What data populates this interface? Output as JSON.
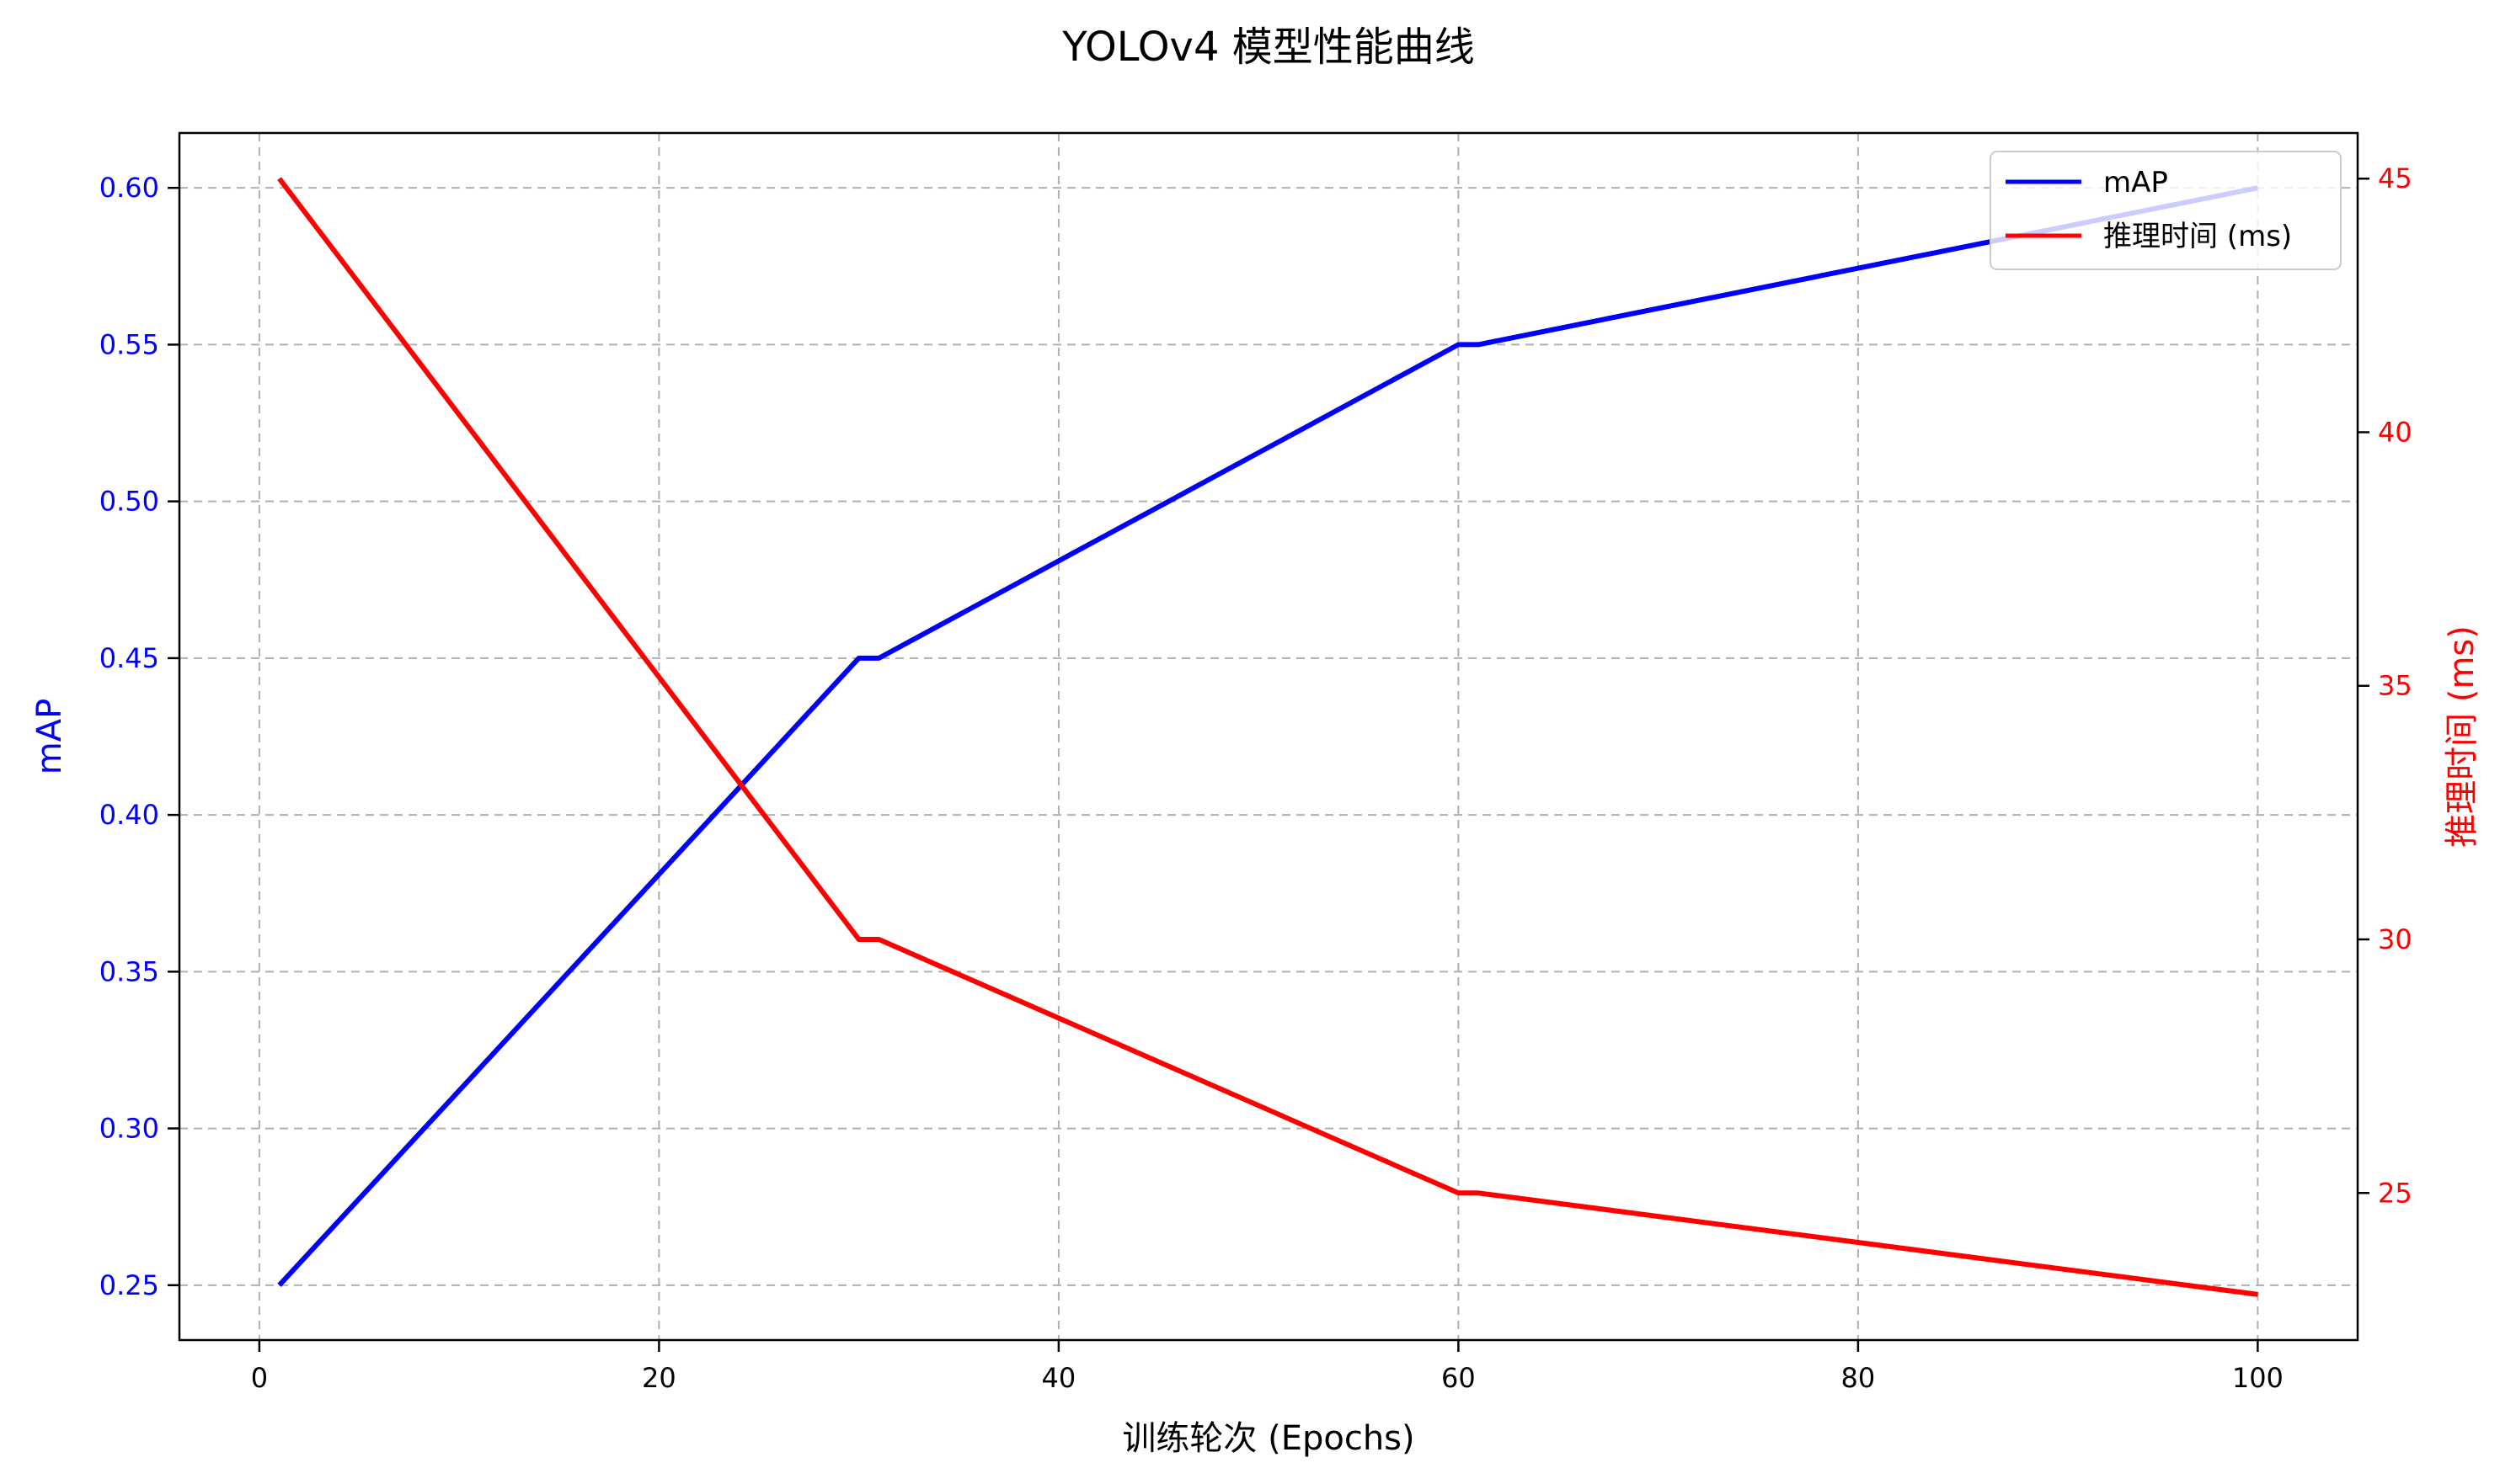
{
  "chart_data": {
    "type": "line",
    "title": "YOLOv4 模型性能曲线",
    "xlabel": "训练轮次 (Epochs)",
    "ylabel_left": "mAP",
    "ylabel_right": "推理时间 (ms)",
    "xlim": [
      -4,
      105
    ],
    "ylim_left": [
      0.2325,
      0.6175
    ],
    "ylim_right": [
      22.1,
      45.9
    ],
    "xticks": [
      0,
      20,
      40,
      60,
      80,
      100
    ],
    "yticks_left": [
      "0.25",
      "0.30",
      "0.35",
      "0.40",
      "0.45",
      "0.50",
      "0.55",
      "0.60"
    ],
    "yticks_right": [
      25,
      30,
      35,
      40,
      45
    ],
    "grid": true,
    "legend_position": "top-right",
    "series": [
      {
        "name": "mAP",
        "axis": "left",
        "color": "#0000ff",
        "x": [
          1,
          30,
          31,
          60,
          61,
          100
        ],
        "y": [
          0.25,
          0.45,
          0.45,
          0.55,
          0.55,
          0.6
        ]
      },
      {
        "name": "推理时间 (ms)",
        "axis": "right",
        "color": "#ff0000",
        "x": [
          1,
          30,
          31,
          60,
          61,
          100
        ],
        "y": [
          45,
          30,
          30,
          25,
          25,
          23
        ]
      }
    ]
  }
}
